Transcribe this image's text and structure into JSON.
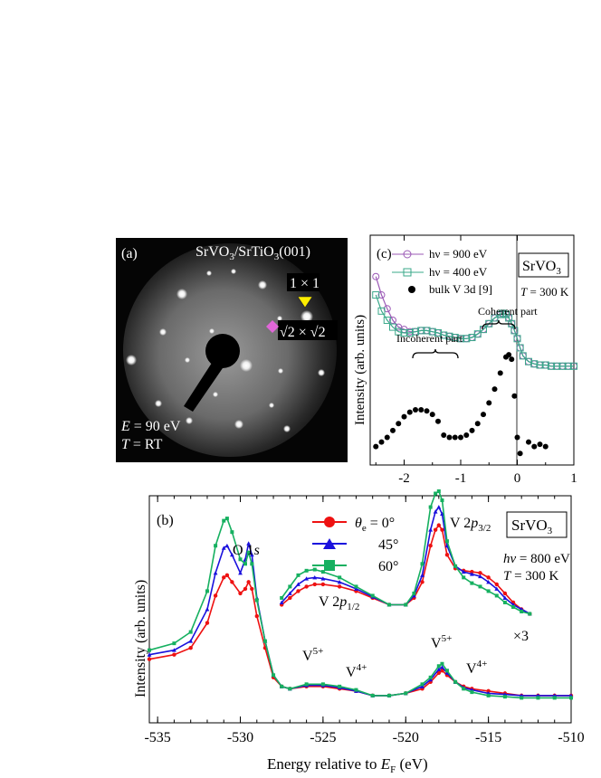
{
  "panel_a": {
    "label": "(a)",
    "title_pre": "SrVO",
    "title_sub": "3",
    "title_mid": "/SrTiO",
    "title_sub2": "3",
    "title_post": "(001)",
    "marker_1x1": "1 × 1",
    "marker_root_pre": "√2 × √2",
    "energy_label": "E",
    "energy_value": " = 90 eV",
    "temp_label": "T",
    "temp_value": " = RT",
    "colors": {
      "marker_1x1": "#ffee00",
      "marker_root": "#e066d8"
    }
  },
  "chart_data": [
    {
      "panel": "(c)",
      "type": "line",
      "xlabel": "",
      "ylabel": "Intensity (arb. units)",
      "xlim": [
        -2.6,
        1.0
      ],
      "xticks": [
        "-2",
        "-1",
        "0",
        "1"
      ],
      "sample_box": "SrVO3",
      "temperature": "T = 300 K",
      "annotations": [
        "Incoherent part",
        "Coherent part"
      ],
      "series": [
        {
          "name": "hν = 900 eV",
          "color": "#9b59b6",
          "marker": "circle-open",
          "x": [
            -2.5,
            -2.4,
            -2.3,
            -2.2,
            -2.1,
            -2.0,
            -1.9,
            -1.8,
            -1.7,
            -1.6,
            -1.5,
            -1.4,
            -1.3,
            -1.2,
            -1.1,
            -1.0,
            -0.9,
            -0.8,
            -0.7,
            -0.6,
            -0.5,
            -0.4,
            -0.3,
            -0.25,
            -0.2,
            -0.15,
            -0.1,
            -0.05,
            0.0,
            0.05,
            0.1,
            0.2,
            0.3,
            0.4,
            0.5,
            0.6,
            0.7,
            0.8,
            0.9,
            1.0
          ],
          "y": [
            0.82,
            0.74,
            0.68,
            0.63,
            0.6,
            0.59,
            0.58,
            0.58,
            0.585,
            0.585,
            0.58,
            0.575,
            0.565,
            0.56,
            0.555,
            0.55,
            0.55,
            0.555,
            0.57,
            0.59,
            0.615,
            0.64,
            0.655,
            0.66,
            0.655,
            0.64,
            0.615,
            0.585,
            0.55,
            0.51,
            0.475,
            0.45,
            0.44,
            0.435,
            0.435,
            0.43,
            0.43,
            0.43,
            0.43,
            0.43
          ]
        },
        {
          "name": "hν = 400 eV",
          "color": "#3aa88a",
          "marker": "square-open",
          "x": [
            -2.5,
            -2.4,
            -2.3,
            -2.2,
            -2.1,
            -2.0,
            -1.9,
            -1.8,
            -1.7,
            -1.6,
            -1.5,
            -1.4,
            -1.3,
            -1.2,
            -1.1,
            -1.0,
            -0.9,
            -0.8,
            -0.7,
            -0.6,
            -0.5,
            -0.4,
            -0.3,
            -0.25,
            -0.2,
            -0.15,
            -0.1,
            -0.05,
            0.0,
            0.05,
            0.1,
            0.2,
            0.3,
            0.4,
            0.5,
            0.6,
            0.7,
            0.8,
            0.9,
            1.0
          ],
          "y": [
            0.74,
            0.67,
            0.63,
            0.6,
            0.58,
            0.575,
            0.575,
            0.58,
            0.585,
            0.585,
            0.58,
            0.575,
            0.565,
            0.56,
            0.555,
            0.55,
            0.55,
            0.555,
            0.57,
            0.59,
            0.615,
            0.64,
            0.655,
            0.66,
            0.655,
            0.64,
            0.615,
            0.585,
            0.55,
            0.51,
            0.475,
            0.45,
            0.44,
            0.435,
            0.435,
            0.43,
            0.43,
            0.43,
            0.43,
            0.43
          ]
        },
        {
          "name": "bulk V 3d [9]",
          "color": "#000000",
          "marker": "circle-filled",
          "x": [
            -2.5,
            -2.4,
            -2.3,
            -2.2,
            -2.1,
            -2.0,
            -1.9,
            -1.8,
            -1.7,
            -1.6,
            -1.5,
            -1.4,
            -1.3,
            -1.2,
            -1.1,
            -1.0,
            -0.9,
            -0.8,
            -0.7,
            -0.6,
            -0.5,
            -0.4,
            -0.3,
            -0.2,
            -0.15,
            -0.1,
            -0.05,
            0.0,
            0.05,
            0.2,
            0.3,
            0.4,
            0.5
          ],
          "y": [
            0.08,
            0.1,
            0.12,
            0.15,
            0.18,
            0.21,
            0.23,
            0.24,
            0.24,
            0.235,
            0.22,
            0.19,
            0.13,
            0.12,
            0.12,
            0.12,
            0.13,
            0.15,
            0.18,
            0.22,
            0.27,
            0.33,
            0.4,
            0.47,
            0.48,
            0.46,
            0.3,
            0.12,
            0.05,
            0.1,
            0.08,
            0.09,
            0.08
          ]
        }
      ]
    },
    {
      "panel": "(b)",
      "type": "line",
      "xlabel": "Energy relative to E_F (eV)",
      "ylabel": "Intensity (arb. units)",
      "xlim": [
        -535.5,
        -510
      ],
      "xticks": [
        "-535",
        "-530",
        "-525",
        "-520",
        "-515",
        "-510"
      ],
      "sample_box": "SrVO3",
      "photon_energy": "hν = 800 eV",
      "temperature": "T = 300 K",
      "peak_labels": [
        "O 1s",
        "V 2p1/2",
        "V 2p3/2",
        "V5+",
        "V4+",
        "V5+",
        "V4+",
        "×3"
      ],
      "legend_title": "θe",
      "series": [
        {
          "name": "0°",
          "color": "#ee1111",
          "marker": "circle",
          "x": [
            -535.5,
            -534,
            -533,
            -532,
            -531.5,
            -531,
            -530.8,
            -530.5,
            -530,
            -529.7,
            -529.5,
            -529.3,
            -529,
            -528.5,
            -528,
            -527.5,
            -527,
            -526,
            -525,
            -524,
            -523,
            -522,
            -521,
            -520,
            -519,
            -518.5,
            -518,
            -517.8,
            -517.5,
            -517,
            -516.5,
            -516,
            -515,
            -514,
            -513,
            -512,
            -511,
            -510
          ],
          "y": [
            0.28,
            0.3,
            0.33,
            0.44,
            0.56,
            0.64,
            0.65,
            0.62,
            0.57,
            0.59,
            0.62,
            0.59,
            0.47,
            0.33,
            0.2,
            0.16,
            0.15,
            0.16,
            0.16,
            0.15,
            0.14,
            0.12,
            0.12,
            0.13,
            0.15,
            0.18,
            0.22,
            0.23,
            0.21,
            0.18,
            0.16,
            0.15,
            0.14,
            0.13,
            0.12,
            0.12,
            0.12,
            0.12
          ]
        },
        {
          "name": "45°",
          "color": "#1a10dd",
          "marker": "triangle",
          "x": [
            -535.5,
            -534,
            -533,
            -532,
            -531.5,
            -531,
            -530.8,
            -530.5,
            -530,
            -529.7,
            -529.5,
            -529.3,
            -529,
            -528.5,
            -528,
            -527.5,
            -527,
            -526,
            -525,
            -524,
            -523,
            -522,
            -521,
            -520,
            -519,
            -518.5,
            -518,
            -517.8,
            -517.5,
            -517,
            -516.5,
            -516,
            -515,
            -514,
            -513,
            -512,
            -511,
            -510
          ],
          "y": [
            0.3,
            0.32,
            0.36,
            0.5,
            0.66,
            0.77,
            0.78,
            0.74,
            0.66,
            0.72,
            0.79,
            0.74,
            0.55,
            0.36,
            0.21,
            0.16,
            0.15,
            0.165,
            0.165,
            0.155,
            0.14,
            0.12,
            0.12,
            0.13,
            0.16,
            0.19,
            0.235,
            0.245,
            0.22,
            0.18,
            0.155,
            0.145,
            0.13,
            0.125,
            0.12,
            0.12,
            0.12,
            0.12
          ]
        },
        {
          "name": "60°",
          "color": "#16b060",
          "marker": "square",
          "x": [
            -535.5,
            -534,
            -533,
            -532,
            -531.5,
            -531,
            -530.8,
            -530.5,
            -530,
            -529.7,
            -529.5,
            -529.3,
            -529,
            -528.5,
            -528,
            -527.5,
            -527,
            -526,
            -525,
            -524,
            -523,
            -522,
            -521,
            -520,
            -519,
            -518.5,
            -518,
            -517.8,
            -517.5,
            -517,
            -516.5,
            -516,
            -515,
            -514,
            -513,
            -512,
            -511,
            -510
          ],
          "y": [
            0.32,
            0.35,
            0.4,
            0.58,
            0.78,
            0.89,
            0.9,
            0.84,
            0.72,
            0.7,
            0.75,
            0.7,
            0.54,
            0.36,
            0.21,
            0.16,
            0.15,
            0.17,
            0.17,
            0.16,
            0.145,
            0.12,
            0.12,
            0.13,
            0.17,
            0.2,
            0.25,
            0.26,
            0.23,
            0.18,
            0.15,
            0.135,
            0.12,
            0.115,
            0.11,
            0.11,
            0.11,
            0.11
          ]
        }
      ],
      "magnified_x3_series": [
        {
          "name": "0°",
          "x": [
            -527.5,
            -527,
            -526.5,
            -526,
            -525.5,
            -525,
            -524,
            -523,
            -522,
            -521,
            -520,
            -519.5,
            -519,
            -518.5,
            -518.2,
            -518,
            -517.8,
            -517.5,
            -517,
            -516.5,
            -516,
            -515.5,
            -515,
            -514.5,
            -514,
            -513.5,
            -513,
            -512.5
          ],
          "y": [
            0.52,
            0.55,
            0.58,
            0.6,
            0.61,
            0.61,
            0.6,
            0.58,
            0.55,
            0.52,
            0.52,
            0.55,
            0.62,
            0.78,
            0.85,
            0.87,
            0.85,
            0.74,
            0.68,
            0.67,
            0.665,
            0.66,
            0.64,
            0.61,
            0.57,
            0.53,
            0.5,
            0.48
          ]
        },
        {
          "name": "45°",
          "x": [
            -527.5,
            -527,
            -526.5,
            -526,
            -525.5,
            -525,
            -524,
            -523,
            -522,
            -521,
            -520,
            -519.5,
            -519,
            -518.5,
            -518.2,
            -518,
            -517.8,
            -517.5,
            -517,
            -516.5,
            -516,
            -515.5,
            -515,
            -514.5,
            -514,
            -513.5,
            -513,
            -512.5
          ],
          "y": [
            0.53,
            0.57,
            0.61,
            0.635,
            0.64,
            0.635,
            0.62,
            0.59,
            0.555,
            0.52,
            0.52,
            0.56,
            0.65,
            0.85,
            0.93,
            0.95,
            0.92,
            0.78,
            0.69,
            0.665,
            0.655,
            0.645,
            0.62,
            0.59,
            0.55,
            0.52,
            0.5,
            0.48
          ]
        },
        {
          "name": "60°",
          "x": [
            -527.5,
            -527,
            -526.5,
            -526,
            -525.5,
            -525,
            -524,
            -523,
            -522,
            -521,
            -520,
            -519.5,
            -519,
            -518.5,
            -518.2,
            -518,
            -517.8,
            -517.5,
            -517,
            -516.5,
            -516,
            -515.5,
            -515,
            -514.5,
            -514,
            -513.5,
            -513,
            -512.5
          ],
          "y": [
            0.55,
            0.6,
            0.65,
            0.67,
            0.675,
            0.665,
            0.64,
            0.6,
            0.56,
            0.52,
            0.52,
            0.57,
            0.7,
            0.95,
            1.01,
            1.02,
            0.98,
            0.8,
            0.69,
            0.64,
            0.615,
            0.6,
            0.58,
            0.56,
            0.53,
            0.51,
            0.49,
            0.48
          ]
        }
      ]
    }
  ]
}
